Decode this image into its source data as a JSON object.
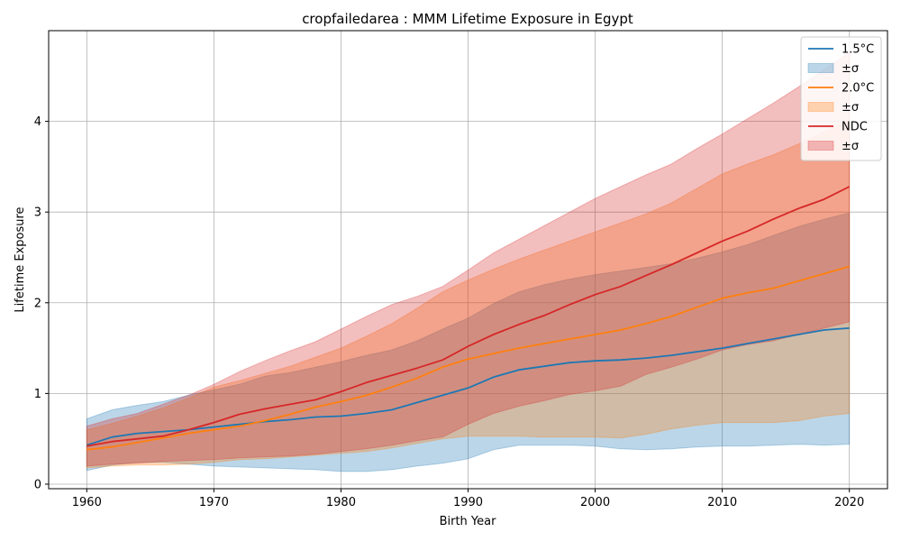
{
  "chart_data": {
    "type": "line",
    "title": "cropfailedarea : MMM Lifetime Exposure in Egypt",
    "xlabel": "Birth Year",
    "ylabel": "Lifetime Exposure",
    "xlim": [
      1957,
      2023
    ],
    "ylim": [
      -0.05,
      5.0
    ],
    "xticks": [
      1960,
      1970,
      1980,
      1990,
      2000,
      2010,
      2020
    ],
    "yticks": [
      0,
      1,
      2,
      3,
      4
    ],
    "grid": true,
    "legend_position": "top-right",
    "x": [
      1960,
      1962,
      1964,
      1966,
      1968,
      1970,
      1972,
      1974,
      1976,
      1978,
      1980,
      1982,
      1984,
      1986,
      1988,
      1990,
      1992,
      1994,
      1996,
      1998,
      2000,
      2002,
      2004,
      2006,
      2008,
      2010,
      2012,
      2014,
      2016,
      2018,
      2020
    ],
    "series": [
      {
        "name": "1.5°C",
        "band_name": "±σ",
        "color": "#1f77b4",
        "band_color": "#1f77b4",
        "values": [
          0.43,
          0.52,
          0.56,
          0.58,
          0.6,
          0.63,
          0.66,
          0.69,
          0.71,
          0.74,
          0.75,
          0.78,
          0.82,
          0.9,
          0.98,
          1.06,
          1.18,
          1.26,
          1.3,
          1.34,
          1.36,
          1.37,
          1.39,
          1.42,
          1.46,
          1.5,
          1.55,
          1.6,
          1.65,
          1.7,
          1.72
        ],
        "upper": [
          0.72,
          0.82,
          0.87,
          0.91,
          0.98,
          1.04,
          1.1,
          1.19,
          1.23,
          1.29,
          1.35,
          1.42,
          1.48,
          1.58,
          1.71,
          1.83,
          1.99,
          2.12,
          2.2,
          2.26,
          2.31,
          2.35,
          2.39,
          2.43,
          2.49,
          2.56,
          2.64,
          2.74,
          2.84,
          2.92,
          2.99
        ],
        "lower": [
          0.15,
          0.21,
          0.24,
          0.24,
          0.22,
          0.2,
          0.19,
          0.18,
          0.17,
          0.16,
          0.14,
          0.14,
          0.16,
          0.2,
          0.23,
          0.28,
          0.38,
          0.43,
          0.43,
          0.43,
          0.42,
          0.39,
          0.38,
          0.39,
          0.41,
          0.42,
          0.42,
          0.43,
          0.44,
          0.43,
          0.44
        ]
      },
      {
        "name": "2.0°C",
        "band_name": "±σ",
        "color": "#ff7f0e",
        "band_color": "#ff7f0e",
        "values": [
          0.38,
          0.41,
          0.46,
          0.51,
          0.56,
          0.6,
          0.64,
          0.7,
          0.77,
          0.85,
          0.91,
          0.98,
          1.07,
          1.17,
          1.29,
          1.38,
          1.44,
          1.5,
          1.55,
          1.6,
          1.65,
          1.7,
          1.77,
          1.85,
          1.95,
          2.05,
          2.11,
          2.16,
          2.24,
          2.32,
          2.4
        ],
        "upper": [
          0.6,
          0.67,
          0.75,
          0.84,
          0.95,
          1.07,
          1.14,
          1.22,
          1.3,
          1.4,
          1.5,
          1.63,
          1.77,
          1.94,
          2.12,
          2.25,
          2.37,
          2.48,
          2.58,
          2.68,
          2.78,
          2.88,
          2.98,
          3.1,
          3.26,
          3.42,
          3.53,
          3.63,
          3.75,
          3.88,
          4.02
        ],
        "lower": [
          0.18,
          0.2,
          0.21,
          0.21,
          0.22,
          0.24,
          0.27,
          0.28,
          0.3,
          0.32,
          0.34,
          0.36,
          0.4,
          0.45,
          0.5,
          0.53,
          0.53,
          0.53,
          0.52,
          0.52,
          0.52,
          0.51,
          0.55,
          0.61,
          0.65,
          0.68,
          0.68,
          0.68,
          0.7,
          0.75,
          0.78
        ]
      },
      {
        "name": "NDC",
        "band_name": "±σ",
        "color": "#d62728",
        "band_color": "#d62728",
        "values": [
          0.42,
          0.47,
          0.5,
          0.53,
          0.6,
          0.68,
          0.77,
          0.83,
          0.88,
          0.93,
          1.02,
          1.12,
          1.2,
          1.28,
          1.37,
          1.52,
          1.65,
          1.76,
          1.86,
          1.98,
          2.09,
          2.18,
          2.3,
          2.42,
          2.55,
          2.68,
          2.79,
          2.92,
          3.04,
          3.14,
          3.28
        ],
        "upper": [
          0.64,
          0.72,
          0.78,
          0.88,
          0.98,
          1.1,
          1.24,
          1.36,
          1.47,
          1.57,
          1.71,
          1.85,
          1.98,
          2.07,
          2.18,
          2.36,
          2.55,
          2.7,
          2.85,
          3.0,
          3.15,
          3.28,
          3.41,
          3.53,
          3.7,
          3.86,
          4.03,
          4.2,
          4.38,
          4.57,
          4.76
        ],
        "lower": [
          0.2,
          0.22,
          0.23,
          0.25,
          0.26,
          0.27,
          0.29,
          0.3,
          0.31,
          0.33,
          0.36,
          0.39,
          0.43,
          0.48,
          0.52,
          0.66,
          0.78,
          0.86,
          0.92,
          0.99,
          1.03,
          1.08,
          1.21,
          1.29,
          1.38,
          1.48,
          1.54,
          1.58,
          1.65,
          1.72,
          1.79
        ]
      }
    ]
  }
}
